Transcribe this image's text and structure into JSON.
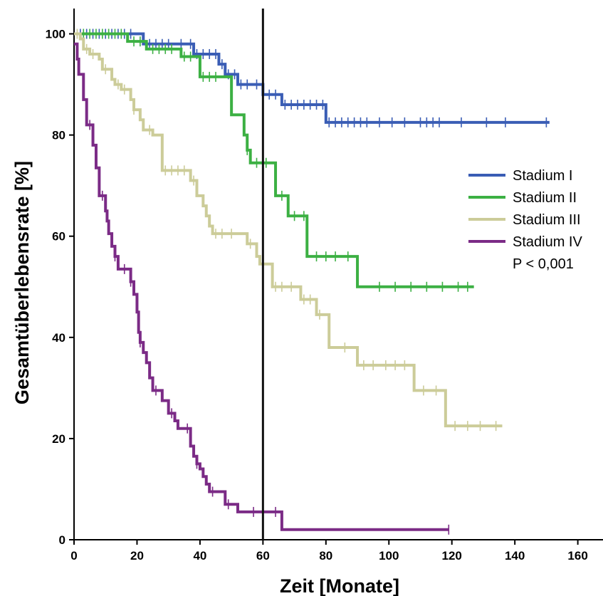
{
  "chart_data": {
    "type": "line",
    "xlabel": "Zeit [Monate]",
    "ylabel": "Gesamtüberlebensrate [%]",
    "xlim": [
      0,
      168
    ],
    "ylim": [
      0,
      105
    ],
    "x_ticks": [
      0,
      20,
      40,
      60,
      80,
      100,
      120,
      140,
      160
    ],
    "y_ticks": [
      0,
      20,
      40,
      60,
      80,
      100
    ],
    "grid": false,
    "step": true,
    "reference_line_x": 60,
    "legend_position": "right",
    "annotation": "P < 0,001",
    "series": [
      {
        "name": "Stadium I",
        "color": "#3a5db5",
        "points": [
          [
            0,
            100
          ],
          [
            20,
            100
          ],
          [
            22,
            98
          ],
          [
            36,
            98
          ],
          [
            38,
            96
          ],
          [
            44,
            96
          ],
          [
            46,
            94
          ],
          [
            48,
            92
          ],
          [
            52,
            90
          ],
          [
            60,
            88
          ],
          [
            65,
            88
          ],
          [
            66,
            86
          ],
          [
            80,
            86
          ],
          [
            80,
            82.5
          ],
          [
            151,
            82.5
          ]
        ],
        "censored": [
          2,
          4,
          6,
          8,
          10,
          12,
          14,
          16,
          18,
          24,
          26,
          28,
          30,
          34,
          37,
          39,
          41,
          43,
          45,
          47,
          49,
          51,
          53,
          55,
          58,
          62,
          64,
          67,
          69,
          71,
          73,
          75,
          77,
          79,
          81,
          83,
          85,
          87,
          89,
          91,
          93,
          97,
          101,
          105,
          110,
          112,
          114,
          116,
          123,
          131,
          137,
          150
        ]
      },
      {
        "name": "Stadium II",
        "color": "#3cb043",
        "points": [
          [
            0,
            100
          ],
          [
            17,
            100
          ],
          [
            17,
            98.5
          ],
          [
            22,
            98.5
          ],
          [
            23,
            97
          ],
          [
            33,
            97
          ],
          [
            34,
            95.5
          ],
          [
            39,
            95.5
          ],
          [
            40,
            91.5
          ],
          [
            49,
            91.5
          ],
          [
            50,
            84
          ],
          [
            53,
            84
          ],
          [
            54,
            80
          ],
          [
            55,
            77
          ],
          [
            56,
            74.5
          ],
          [
            63,
            74.5
          ],
          [
            64,
            68
          ],
          [
            67,
            68
          ],
          [
            68,
            64
          ],
          [
            72,
            64
          ],
          [
            74,
            56
          ],
          [
            90,
            56
          ],
          [
            90,
            50
          ],
          [
            127,
            50
          ]
        ],
        "censored": [
          3,
          5,
          7,
          9,
          11,
          13,
          15,
          19,
          21,
          25,
          27,
          29,
          31,
          35,
          37,
          41,
          43,
          45,
          55,
          58,
          61,
          66,
          70,
          73,
          77,
          80,
          83,
          87,
          97,
          102,
          107,
          112,
          117,
          122,
          125
        ]
      },
      {
        "name": "Stadium III",
        "color": "#cccc99",
        "points": [
          [
            0,
            100
          ],
          [
            2,
            99
          ],
          [
            3,
            97
          ],
          [
            5,
            96
          ],
          [
            8,
            95
          ],
          [
            9,
            93
          ],
          [
            12,
            91
          ],
          [
            13,
            90
          ],
          [
            15,
            89
          ],
          [
            18,
            87
          ],
          [
            19,
            85
          ],
          [
            21,
            83
          ],
          [
            22,
            81
          ],
          [
            25,
            80
          ],
          [
            27,
            80
          ],
          [
            28,
            73
          ],
          [
            36,
            73
          ],
          [
            37,
            71
          ],
          [
            39,
            68
          ],
          [
            41,
            66
          ],
          [
            42,
            64
          ],
          [
            43,
            62
          ],
          [
            44,
            60.5
          ],
          [
            54,
            60.5
          ],
          [
            55,
            58.5
          ],
          [
            58,
            56
          ],
          [
            59,
            54.5
          ],
          [
            62,
            54.5
          ],
          [
            63,
            50
          ],
          [
            71,
            50
          ],
          [
            72,
            47.5
          ],
          [
            76,
            47.5
          ],
          [
            77,
            44.5
          ],
          [
            80,
            44.5
          ],
          [
            81,
            38
          ],
          [
            90,
            38
          ],
          [
            90,
            34.5
          ],
          [
            108,
            34.5
          ],
          [
            108,
            29.5
          ],
          [
            118,
            29.5
          ],
          [
            118,
            22.5
          ],
          [
            136,
            22.5
          ]
        ],
        "censored": [
          1,
          4,
          6,
          10,
          14,
          16,
          19,
          24,
          29,
          31,
          33,
          35,
          38,
          45,
          47,
          50,
          56,
          60,
          64,
          66,
          69,
          73,
          75,
          78,
          86,
          92,
          95,
          99,
          102,
          105,
          111,
          115,
          121,
          125,
          129,
          134
        ]
      },
      {
        "name": "Stadium IV",
        "color": "#7b2b86",
        "points": [
          [
            0,
            98
          ],
          [
            1,
            95
          ],
          [
            1.5,
            92
          ],
          [
            3,
            87
          ],
          [
            4,
            82
          ],
          [
            6,
            82
          ],
          [
            6,
            78
          ],
          [
            7,
            73.5
          ],
          [
            8,
            68
          ],
          [
            10,
            65
          ],
          [
            10.5,
            63
          ],
          [
            11,
            60.5
          ],
          [
            12,
            58
          ],
          [
            13,
            56
          ],
          [
            14,
            53.5
          ],
          [
            17,
            53.5
          ],
          [
            18,
            51
          ],
          [
            19,
            48.5
          ],
          [
            20,
            45
          ],
          [
            20.5,
            41
          ],
          [
            21,
            39
          ],
          [
            22,
            37
          ],
          [
            23,
            35
          ],
          [
            24,
            32
          ],
          [
            25,
            29.5
          ],
          [
            27,
            29.5
          ],
          [
            28,
            27.5
          ],
          [
            30,
            25
          ],
          [
            32,
            23.5
          ],
          [
            33,
            22
          ],
          [
            37,
            22
          ],
          [
            37,
            18.5
          ],
          [
            38,
            16.5
          ],
          [
            39,
            15
          ],
          [
            40,
            14
          ],
          [
            41,
            12.5
          ],
          [
            42,
            11
          ],
          [
            43,
            9.5
          ],
          [
            47,
            9.5
          ],
          [
            48,
            7
          ],
          [
            52,
            7
          ],
          [
            52,
            5.5
          ],
          [
            65,
            5.5
          ],
          [
            66,
            2
          ],
          [
            119,
            2
          ]
        ],
        "censored": [
          5,
          9,
          13,
          16,
          18,
          21,
          26,
          31,
          36,
          39,
          44,
          49,
          57,
          64,
          119
        ]
      }
    ]
  }
}
